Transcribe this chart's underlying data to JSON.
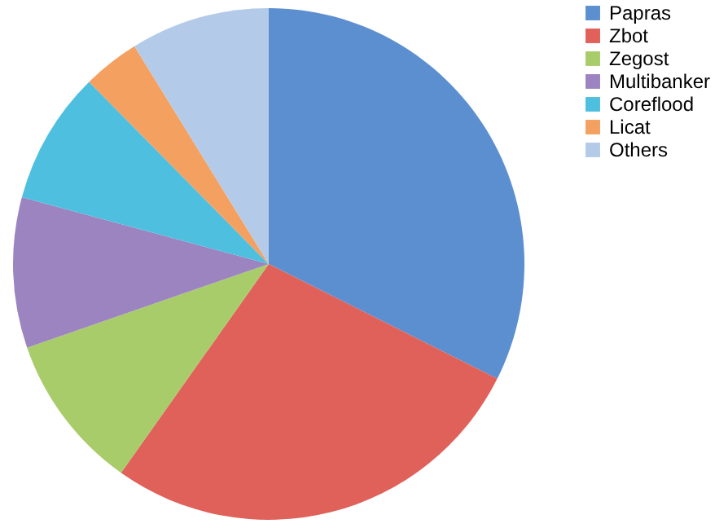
{
  "chart_data": {
    "type": "pie",
    "categories": [
      "Papras",
      "Zbot",
      "Zegost",
      "Multibanker",
      "Coreflood",
      "Licat",
      "Others"
    ],
    "values": [
      32.4,
      27.4,
      9.9,
      9.5,
      8.4,
      3.6,
      8.8
    ],
    "colors": [
      "#5b8fd0",
      "#e0605a",
      "#a8cc6a",
      "#9b84c0",
      "#4ebfdf",
      "#f4a060",
      "#b3cbe8"
    ],
    "legend": "right"
  }
}
